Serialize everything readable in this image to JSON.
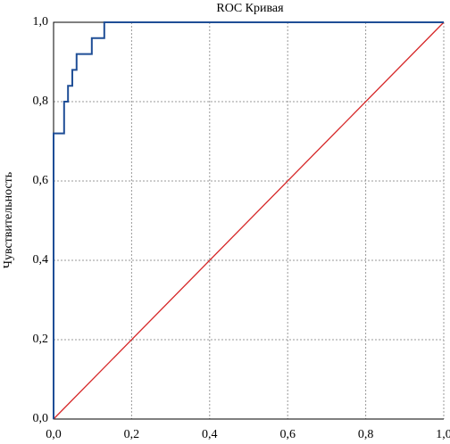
{
  "chart_data": {
    "type": "line",
    "title": "ROC Кривая",
    "y_label": "Чувствительность",
    "series": [
      {
        "color": "#1f4e96",
        "x": [
          0,
          0,
          0.027,
          0.027,
          0.037,
          0.037,
          0.048,
          0.048,
          0.059,
          0.059,
          0.098,
          0.098,
          0.13,
          0.13,
          1
        ],
        "values": [
          0,
          0.72,
          0.72,
          0.8,
          0.8,
          0.84,
          0.84,
          0.88,
          0.88,
          0.92,
          0.92,
          0.96,
          0.96,
          1,
          1
        ]
      },
      {
        "color": "#d62728",
        "x": [
          0,
          1
        ],
        "values": [
          0,
          1
        ]
      }
    ],
    "xlim": [
      0,
      1
    ],
    "ylim": [
      0,
      1
    ],
    "xticks": [
      {
        "value": 0,
        "label": "0,0"
      },
      {
        "value": 0.2,
        "label": "0,2"
      },
      {
        "value": 0.4,
        "label": "0,4"
      },
      {
        "value": 0.6,
        "label": "0,6"
      },
      {
        "value": 0.8,
        "label": "0,8"
      },
      {
        "value": 1,
        "label": "1,0"
      }
    ],
    "yticks": [
      {
        "value": 0,
        "label": "0,0"
      },
      {
        "value": 0.2,
        "label": "0,2"
      },
      {
        "value": 0.4,
        "label": "0,4"
      },
      {
        "value": 0.6,
        "label": "0,6"
      },
      {
        "value": 0.8,
        "label": "0,8"
      },
      {
        "value": 1,
        "label": "1,0"
      }
    ],
    "grid": true
  }
}
